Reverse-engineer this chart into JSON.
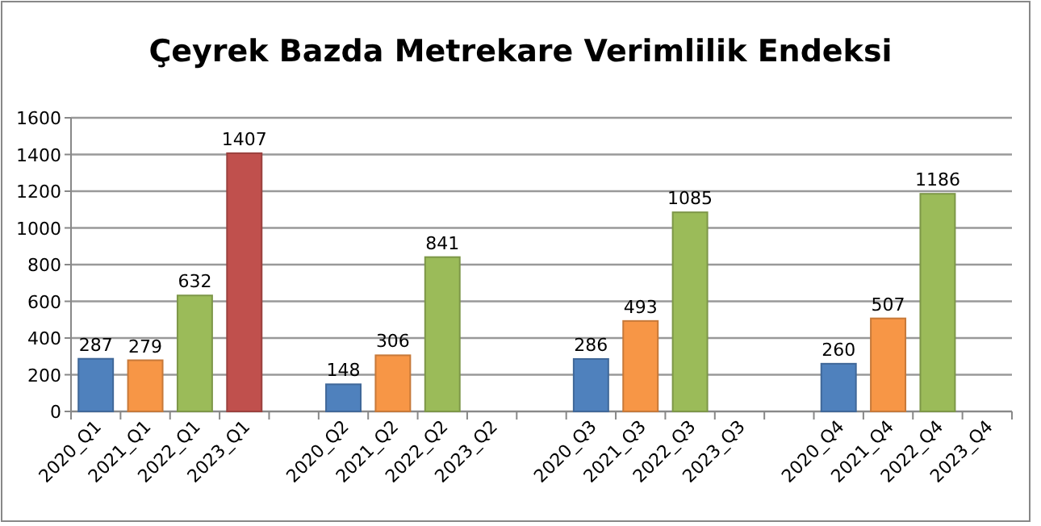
{
  "chart_data": {
    "type": "bar",
    "title": "Çeyrek Bazda Metrekare Verimlilik Endeksi",
    "categories": [
      "2020_Q1",
      "2021_Q1",
      "2022_Q1",
      "2023_Q1",
      null,
      "2020_Q2",
      "2021_Q2",
      "2022_Q2",
      "2023_Q2",
      null,
      "2020_Q3",
      "2021_Q3",
      "2022_Q3",
      "2023_Q3",
      null,
      "2020_Q4",
      "2021_Q4",
      "2022_Q4",
      "2023_Q4"
    ],
    "values": [
      287,
      279,
      632,
      1407,
      null,
      148,
      306,
      841,
      null,
      null,
      286,
      493,
      1085,
      null,
      null,
      260,
      507,
      1186,
      null
    ],
    "colors": [
      "#4f81bd",
      "#f79646",
      "#9bbb59",
      "#c0504d",
      null,
      "#4f81bd",
      "#f79646",
      "#9bbb59",
      null,
      null,
      "#4f81bd",
      "#f79646",
      "#9bbb59",
      null,
      null,
      "#4f81bd",
      "#f79646",
      "#9bbb59",
      null
    ],
    "ylim": [
      0,
      1600
    ],
    "yticks": [
      0,
      200,
      400,
      600,
      800,
      1000,
      1200,
      1400,
      1600
    ],
    "grid": "y",
    "data_labels": true
  }
}
